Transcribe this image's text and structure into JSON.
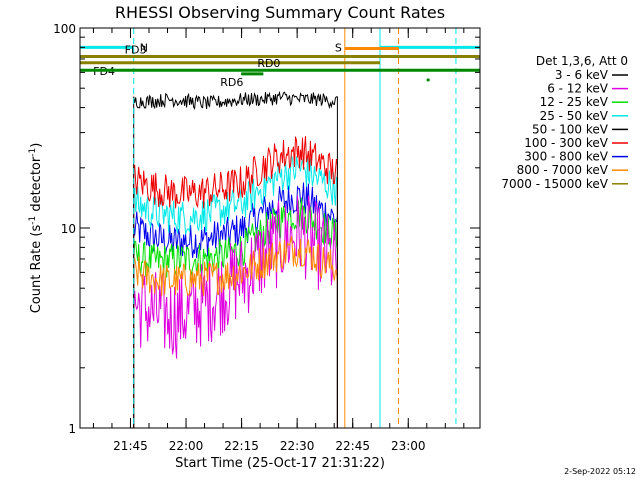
{
  "chart_data": {
    "type": "line",
    "title": "RHESSI Observing Summary Count Rates",
    "xlabel": "Start Time (25-Oct-17 21:31:22)",
    "ylabel_main": "Count Rate (s",
    "ylabel_sup": "-1",
    "ylabel_rest": " detector",
    "ylabel_sup2": "-1",
    "ylabel_close": ")",
    "y_scale": "log",
    "ylim": [
      1,
      100
    ],
    "xlim_minutes": [
      0,
      108
    ],
    "x_ticks": [
      {
        "minute": 13.63,
        "label": "21:45"
      },
      {
        "minute": 28.63,
        "label": "22:00"
      },
      {
        "minute": 43.63,
        "label": "22:15"
      },
      {
        "minute": 58.63,
        "label": "22:30"
      },
      {
        "minute": 73.63,
        "label": "22:45"
      },
      {
        "minute": 88.63,
        "label": "23:00"
      }
    ],
    "y_ticks": [
      {
        "value": 1,
        "label": "1"
      },
      {
        "value": 10,
        "label": "10"
      },
      {
        "value": 100,
        "label": "100"
      }
    ],
    "data_interval_minutes": [
      14.5,
      69.5
    ],
    "legend_header": "Det 1,3,6, Att 0",
    "legend_position": "right",
    "series": [
      {
        "name": "3 - 6 keV",
        "color": "#000000",
        "values": [
          43,
          43,
          44,
          43,
          42,
          43,
          44,
          44,
          45,
          44,
          44,
          43
        ]
      },
      {
        "name": "6 - 12 keV",
        "color": "#e000e0",
        "values": [
          4.2,
          3.8,
          3.6,
          3.8,
          4.3,
          5.0,
          5.8,
          7.2,
          8.5,
          9.5,
          8.0,
          6.5
        ]
      },
      {
        "name": "12 - 25 keV",
        "color": "#00e000",
        "values": [
          7.2,
          6.8,
          6.9,
          7.0,
          7.0,
          7.3,
          8.0,
          9.5,
          11.0,
          12.0,
          10.5,
          9.0
        ]
      },
      {
        "name": "25 - 50 keV",
        "color": "#00e8e8",
        "values": [
          13.5,
          12.0,
          11.5,
          11.3,
          11.8,
          12.5,
          13.5,
          16.0,
          18.5,
          20.0,
          17.5,
          15.5
        ]
      },
      {
        "name": "50 - 100 keV",
        "color": "#000000",
        "values": []
      },
      {
        "name": "100 - 300 keV",
        "color": "#ee0000",
        "values": [
          17.5,
          16.0,
          15.0,
          14.8,
          15.2,
          16.0,
          17.0,
          20.5,
          23.0,
          24.5,
          21.5,
          18.5
        ]
      },
      {
        "name": "300 - 800 keV",
        "color": "#0000ee",
        "values": [
          10.0,
          9.0,
          8.5,
          8.6,
          8.8,
          9.2,
          10.0,
          12.0,
          13.5,
          14.5,
          12.5,
          11.0
        ]
      },
      {
        "name": "800 - 7000 keV",
        "color": "#ff8800",
        "values": [
          6.0,
          5.6,
          5.4,
          5.5,
          5.6,
          5.8,
          6.1,
          6.8,
          7.5,
          8.0,
          7.0,
          6.2
        ]
      },
      {
        "name": "7000 - 15000 keV",
        "color": "#888000",
        "values": []
      }
    ],
    "annotations": {
      "night": {
        "label": "N",
        "color": "#00e8e8",
        "bars": [
          [
            0,
            14.5,
            80
          ],
          [
            81,
            108,
            80
          ]
        ],
        "lines": [
          0,
          81
        ],
        "dashed_lines": [
          14.5,
          101.5
        ]
      },
      "saa": {
        "label": "S",
        "color": "#ff8800",
        "bars": [
          [
            71.5,
            86,
            79
          ]
        ],
        "lines": [
          71.5
        ],
        "dashed_lines": [
          86
        ]
      },
      "flags": [
        {
          "label": "FD3",
          "color": "#888000",
          "label_minute": 15,
          "bars": [
            [
              0,
              73,
              72
            ],
            [
              73,
              108,
              72
            ]
          ]
        },
        {
          "label": "FD4",
          "color": "#888000",
          "label_minute": 6.5,
          "bars": [
            [
              0,
              73,
              67
            ],
            [
              73,
              81,
              67
            ]
          ]
        },
        {
          "label": "RD0",
          "color": "#008800",
          "label_minute": 51,
          "bars": [
            [
              0,
              108,
              61.5
            ]
          ]
        },
        {
          "label": "RD6",
          "color": "#008800",
          "label_minute": 41,
          "bars": [
            [
              43.5,
              49.5,
              59
            ]
          ]
        }
      ],
      "dot": {
        "minute": 94,
        "value": 55,
        "color": "#008800"
      }
    }
  },
  "footer": {
    "date": "2-Sep-2022 05:12"
  }
}
